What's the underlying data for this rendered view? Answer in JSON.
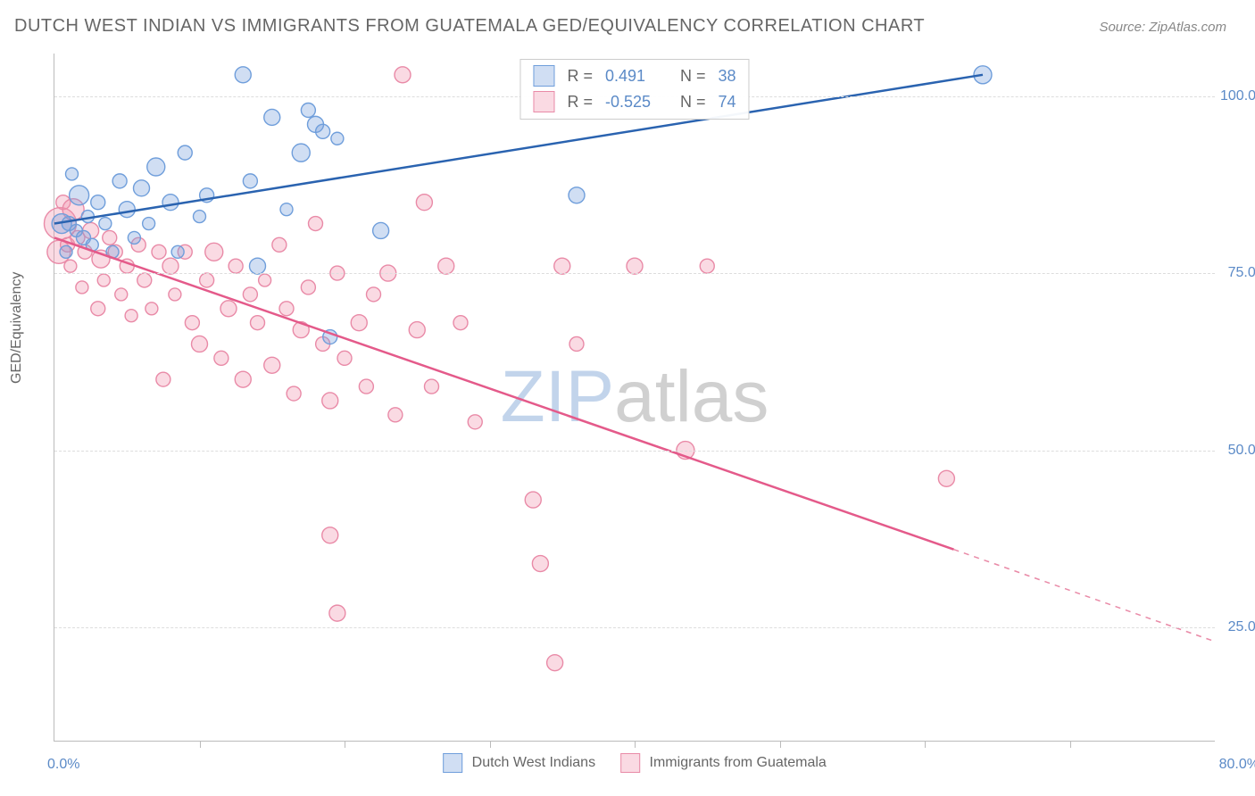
{
  "title": "DUTCH WEST INDIAN VS IMMIGRANTS FROM GUATEMALA GED/EQUIVALENCY CORRELATION CHART",
  "source": "Source: ZipAtlas.com",
  "ylabel": "GED/Equivalency",
  "watermark_zip": "ZIP",
  "watermark_atlas": "atlas",
  "chart": {
    "type": "scatter",
    "background_color": "#ffffff",
    "grid_color": "#dddddd",
    "axis_color": "#bbbbbb",
    "tick_label_color": "#5b8ac7",
    "xlim": [
      0,
      80
    ],
    "ylim": [
      9,
      106
    ],
    "yticks": [
      25,
      50,
      75,
      100
    ],
    "ytick_labels": [
      "25.0%",
      "50.0%",
      "75.0%",
      "100.0%"
    ],
    "xticks": [
      10,
      20,
      30,
      40,
      50,
      60,
      70
    ],
    "xaxis_label_left": "0.0%",
    "xaxis_label_right": "80.0%",
    "series": [
      {
        "name": "Dutch West Indians",
        "fill": "rgba(120,160,220,0.35)",
        "stroke": "#6f9edb",
        "line_color": "#2a63b0",
        "r_label": "R =",
        "r_value": "0.491",
        "n_label": "N =",
        "n_value": "38",
        "trend": {
          "x1": 0,
          "y1": 82,
          "x2": 64,
          "y2": 103,
          "dashed_extend": false
        },
        "points": [
          {
            "x": 0.5,
            "y": 82,
            "r": 11
          },
          {
            "x": 0.8,
            "y": 78,
            "r": 7
          },
          {
            "x": 1.0,
            "y": 82,
            "r": 8
          },
          {
            "x": 1.2,
            "y": 89,
            "r": 7
          },
          {
            "x": 1.5,
            "y": 81,
            "r": 7
          },
          {
            "x": 1.7,
            "y": 86,
            "r": 11
          },
          {
            "x": 2.0,
            "y": 80,
            "r": 8
          },
          {
            "x": 2.3,
            "y": 83,
            "r": 7
          },
          {
            "x": 2.6,
            "y": 79,
            "r": 7
          },
          {
            "x": 3.0,
            "y": 85,
            "r": 8
          },
          {
            "x": 3.5,
            "y": 82,
            "r": 7
          },
          {
            "x": 4.0,
            "y": 78,
            "r": 7
          },
          {
            "x": 4.5,
            "y": 88,
            "r": 8
          },
          {
            "x": 5.0,
            "y": 84,
            "r": 9
          },
          {
            "x": 5.5,
            "y": 80,
            "r": 7
          },
          {
            "x": 6.0,
            "y": 87,
            "r": 9
          },
          {
            "x": 6.5,
            "y": 82,
            "r": 7
          },
          {
            "x": 7.0,
            "y": 90,
            "r": 10
          },
          {
            "x": 8.0,
            "y": 85,
            "r": 9
          },
          {
            "x": 8.5,
            "y": 78,
            "r": 7
          },
          {
            "x": 9.0,
            "y": 92,
            "r": 8
          },
          {
            "x": 10.0,
            "y": 83,
            "r": 7
          },
          {
            "x": 10.5,
            "y": 86,
            "r": 8
          },
          {
            "x": 13.0,
            "y": 103,
            "r": 9
          },
          {
            "x": 13.5,
            "y": 88,
            "r": 8
          },
          {
            "x": 14.0,
            "y": 76,
            "r": 9
          },
          {
            "x": 15.0,
            "y": 97,
            "r": 9
          },
          {
            "x": 16.0,
            "y": 84,
            "r": 7
          },
          {
            "x": 17.0,
            "y": 92,
            "r": 10
          },
          {
            "x": 17.5,
            "y": 98,
            "r": 8
          },
          {
            "x": 18.0,
            "y": 96,
            "r": 9
          },
          {
            "x": 18.5,
            "y": 95,
            "r": 8
          },
          {
            "x": 19.0,
            "y": 66,
            "r": 8
          },
          {
            "x": 19.5,
            "y": 94,
            "r": 7
          },
          {
            "x": 22.5,
            "y": 81,
            "r": 9
          },
          {
            "x": 36.0,
            "y": 86,
            "r": 9
          },
          {
            "x": 64.0,
            "y": 103,
            "r": 10
          }
        ]
      },
      {
        "name": "Immigrants from Guatemala",
        "fill": "rgba(240,150,175,0.35)",
        "stroke": "#e98aa7",
        "line_color": "#e45a8a",
        "r_label": "R =",
        "r_value": "-0.525",
        "n_label": "N =",
        "n_value": "74",
        "trend": {
          "x1": 0,
          "y1": 80,
          "x2": 62,
          "y2": 36,
          "dashed_extend": true,
          "x3": 80,
          "y3": 23
        },
        "points": [
          {
            "x": 0.3,
            "y": 78,
            "r": 13
          },
          {
            "x": 0.4,
            "y": 82,
            "r": 18
          },
          {
            "x": 0.6,
            "y": 85,
            "r": 8
          },
          {
            "x": 0.9,
            "y": 79,
            "r": 8
          },
          {
            "x": 1.1,
            "y": 76,
            "r": 7
          },
          {
            "x": 1.3,
            "y": 84,
            "r": 12
          },
          {
            "x": 1.6,
            "y": 80,
            "r": 8
          },
          {
            "x": 1.9,
            "y": 73,
            "r": 7
          },
          {
            "x": 2.1,
            "y": 78,
            "r": 8
          },
          {
            "x": 2.5,
            "y": 81,
            "r": 9
          },
          {
            "x": 3.0,
            "y": 70,
            "r": 8
          },
          {
            "x": 3.2,
            "y": 77,
            "r": 10
          },
          {
            "x": 3.4,
            "y": 74,
            "r": 7
          },
          {
            "x": 3.8,
            "y": 80,
            "r": 8
          },
          {
            "x": 4.2,
            "y": 78,
            "r": 8
          },
          {
            "x": 4.6,
            "y": 72,
            "r": 7
          },
          {
            "x": 5.0,
            "y": 76,
            "r": 8
          },
          {
            "x": 5.3,
            "y": 69,
            "r": 7
          },
          {
            "x": 5.8,
            "y": 79,
            "r": 8
          },
          {
            "x": 6.2,
            "y": 74,
            "r": 8
          },
          {
            "x": 6.7,
            "y": 70,
            "r": 7
          },
          {
            "x": 7.2,
            "y": 78,
            "r": 8
          },
          {
            "x": 7.5,
            "y": 60,
            "r": 8
          },
          {
            "x": 8.0,
            "y": 76,
            "r": 9
          },
          {
            "x": 8.3,
            "y": 72,
            "r": 7
          },
          {
            "x": 9.0,
            "y": 78,
            "r": 8
          },
          {
            "x": 9.5,
            "y": 68,
            "r": 8
          },
          {
            "x": 10.0,
            "y": 65,
            "r": 9
          },
          {
            "x": 10.5,
            "y": 74,
            "r": 8
          },
          {
            "x": 11.0,
            "y": 78,
            "r": 10
          },
          {
            "x": 11.5,
            "y": 63,
            "r": 8
          },
          {
            "x": 12.0,
            "y": 70,
            "r": 9
          },
          {
            "x": 12.5,
            "y": 76,
            "r": 8
          },
          {
            "x": 13.0,
            "y": 60,
            "r": 9
          },
          {
            "x": 13.5,
            "y": 72,
            "r": 8
          },
          {
            "x": 14.0,
            "y": 68,
            "r": 8
          },
          {
            "x": 14.5,
            "y": 74,
            "r": 7
          },
          {
            "x": 15.0,
            "y": 62,
            "r": 9
          },
          {
            "x": 15.5,
            "y": 79,
            "r": 8
          },
          {
            "x": 16.0,
            "y": 70,
            "r": 8
          },
          {
            "x": 16.5,
            "y": 58,
            "r": 8
          },
          {
            "x": 17.0,
            "y": 67,
            "r": 9
          },
          {
            "x": 17.5,
            "y": 73,
            "r": 8
          },
          {
            "x": 18.0,
            "y": 82,
            "r": 8
          },
          {
            "x": 18.5,
            "y": 65,
            "r": 8
          },
          {
            "x": 19.0,
            "y": 57,
            "r": 9
          },
          {
            "x": 19.5,
            "y": 75,
            "r": 8
          },
          {
            "x": 20.0,
            "y": 63,
            "r": 8
          },
          {
            "x": 21.0,
            "y": 68,
            "r": 9
          },
          {
            "x": 21.5,
            "y": 59,
            "r": 8
          },
          {
            "x": 22.0,
            "y": 72,
            "r": 8
          },
          {
            "x": 23.0,
            "y": 75,
            "r": 9
          },
          {
            "x": 23.5,
            "y": 55,
            "r": 8
          },
          {
            "x": 24.0,
            "y": 103,
            "r": 9
          },
          {
            "x": 25.0,
            "y": 67,
            "r": 9
          },
          {
            "x": 25.5,
            "y": 85,
            "r": 9
          },
          {
            "x": 26.0,
            "y": 59,
            "r": 8
          },
          {
            "x": 27.0,
            "y": 76,
            "r": 9
          },
          {
            "x": 28.0,
            "y": 68,
            "r": 8
          },
          {
            "x": 29.0,
            "y": 54,
            "r": 8
          },
          {
            "x": 19.0,
            "y": 38,
            "r": 9
          },
          {
            "x": 19.5,
            "y": 27,
            "r": 9
          },
          {
            "x": 33.0,
            "y": 43,
            "r": 9
          },
          {
            "x": 33.5,
            "y": 34,
            "r": 9
          },
          {
            "x": 34.5,
            "y": 20,
            "r": 9
          },
          {
            "x": 35.0,
            "y": 76,
            "r": 9
          },
          {
            "x": 36.0,
            "y": 65,
            "r": 8
          },
          {
            "x": 40.0,
            "y": 76,
            "r": 9
          },
          {
            "x": 43.5,
            "y": 50,
            "r": 10
          },
          {
            "x": 45.0,
            "y": 76,
            "r": 8
          },
          {
            "x": 61.5,
            "y": 46,
            "r": 9
          }
        ]
      }
    ]
  },
  "bottom_legend": [
    "Dutch West Indians",
    "Immigrants from Guatemala"
  ]
}
